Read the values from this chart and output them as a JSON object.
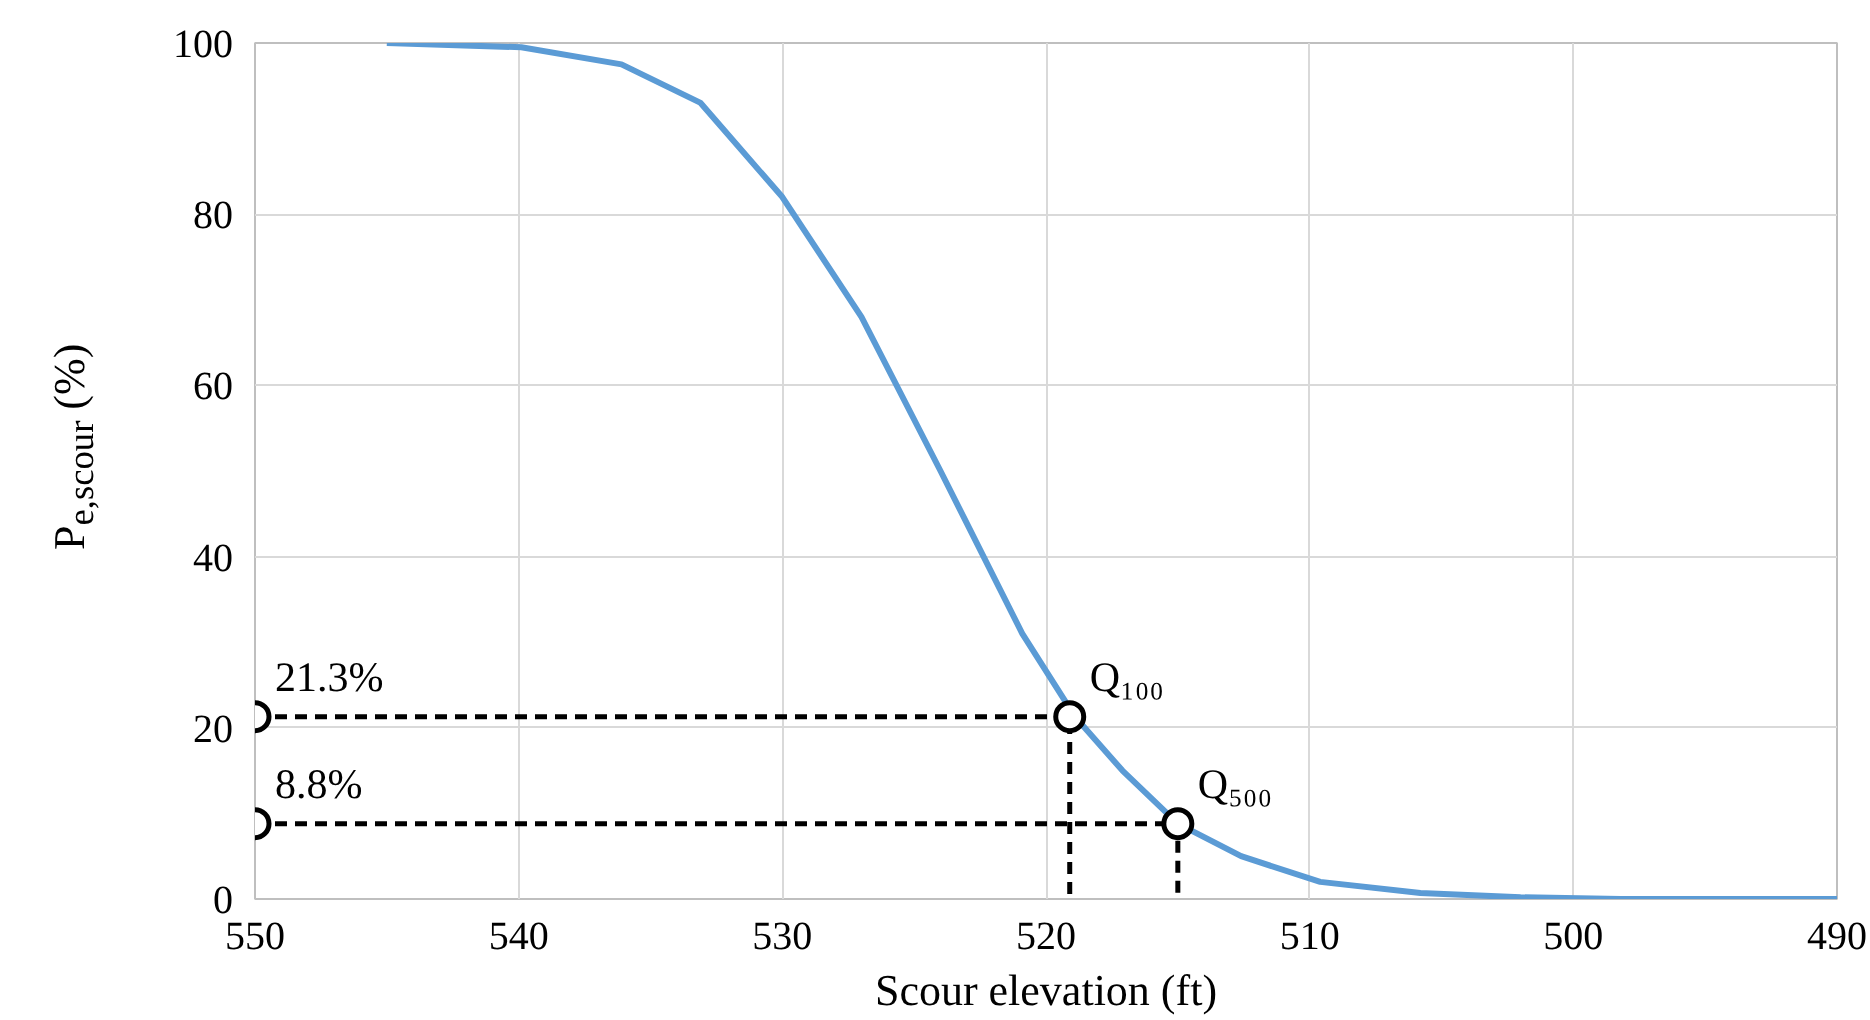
{
  "chart_data": {
    "type": "line",
    "xlabel": "Scour elevation (ft)",
    "ylabel": "P$_{e,scour}$ (%)",
    "xlim": [
      550,
      490
    ],
    "xticks": [
      550,
      540,
      530,
      520,
      510,
      500,
      490
    ],
    "ylim": [
      0,
      100
    ],
    "yticks": [
      0,
      20,
      40,
      60,
      80,
      100
    ],
    "grid": true,
    "series": [
      {
        "type": "line",
        "color": "#5b9bd5",
        "line_style": "solid",
        "marker": "none",
        "x": [
          545,
          539.9,
          536.1,
          533.1,
          530,
          527,
          524,
          520.9,
          518.9,
          517.1,
          515,
          512.6,
          509.6,
          505.8,
          502,
          498.2,
          490
        ],
        "values": [
          100,
          99.5,
          97.5,
          93,
          82,
          68,
          50,
          31,
          21.3,
          15,
          8.8,
          5,
          2,
          0.7,
          0.2,
          0,
          0
        ]
      },
      {
        "type": "line",
        "color": "#000000",
        "line_style": "dashed",
        "marker": "none",
        "x": [
          550,
          519.1,
          519.1
        ],
        "values": [
          21.3,
          21.3,
          0
        ]
      },
      {
        "type": "line",
        "color": "#000000",
        "line_style": "dashed",
        "marker": "none",
        "x": [
          550,
          515,
          515
        ],
        "values": [
          8.8,
          8.8,
          0
        ]
      },
      {
        "type": "scatter",
        "color": "#000000",
        "marker": "circle",
        "x": [
          550,
          519.1,
          550,
          515
        ],
        "values": [
          21.3,
          21.3,
          8.8,
          8.8
        ]
      }
    ],
    "annotations": [
      {
        "text": "21.3%",
        "x": 550,
        "y": 21.3
      },
      {
        "text": "8.8%",
        "x": 550,
        "y": 8.8
      },
      {
        "text": "Q₁₀₀",
        "x": 519.1,
        "y": 21.3
      },
      {
        "text": "Q₅₀₀",
        "x": 515,
        "y": 8.8
      }
    ]
  }
}
